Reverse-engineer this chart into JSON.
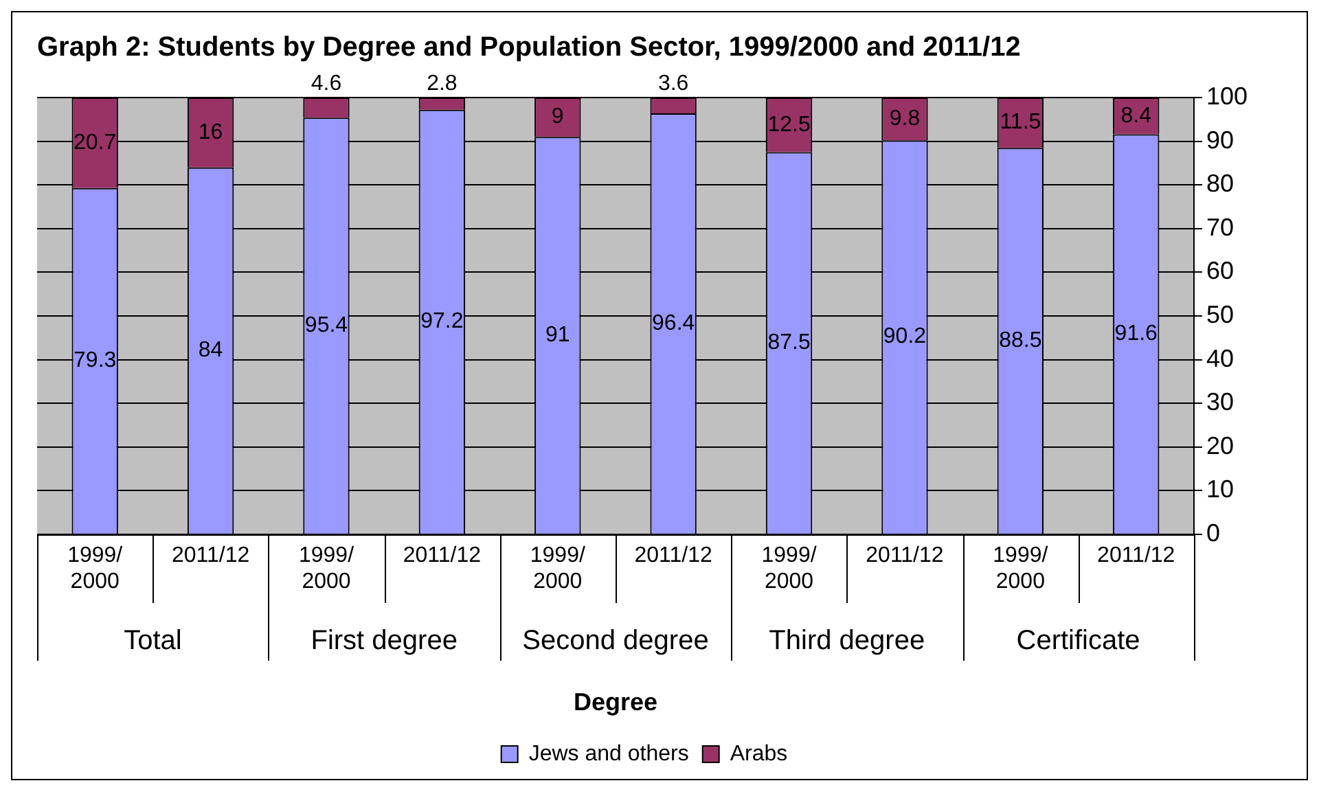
{
  "chart_data": {
    "type": "bar",
    "title": "Graph 2: Students by Degree and Population Sector, 1999/2000 and 2011/12",
    "xlabel": "Degree",
    "categories": [
      "1999/2000",
      "2011/12",
      "1999/2000",
      "2011/12",
      "1999/2000",
      "2011/12",
      "1999/2000",
      "2011/12",
      "1999/2000",
      "2011/12"
    ],
    "annotations": [
      "Total",
      "First degree",
      "Second degree",
      "Third degree",
      "Certificate"
    ],
    "stacked": true,
    "series": [
      {
        "name": "Jews and others",
        "color": "#9999ff",
        "values": [
          79.3,
          84,
          95.4,
          97.2,
          91,
          96.4,
          87.5,
          90.2,
          88.5,
          91.6
        ]
      },
      {
        "name": "Arabs",
        "color": "#993366",
        "values": [
          20.7,
          16,
          4.6,
          2.8,
          9,
          3.6,
          12.5,
          9.8,
          11.5,
          8.4
        ]
      }
    ],
    "ylim": [
      0,
      100
    ],
    "yticks": [
      0,
      10,
      20,
      30,
      40,
      50,
      60,
      70,
      80,
      90,
      100
    ],
    "grid": "y",
    "data_labels": true,
    "legend": "bottom"
  }
}
